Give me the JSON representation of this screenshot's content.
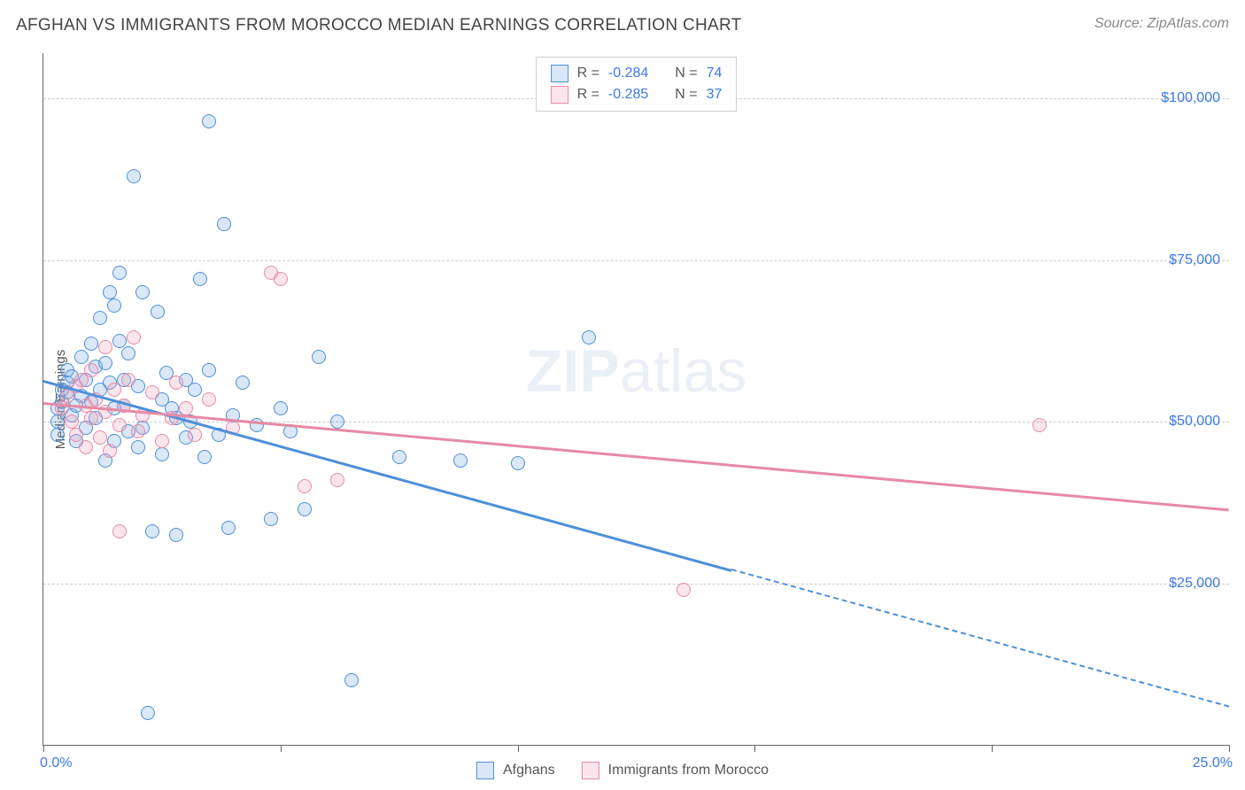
{
  "title": "AFGHAN VS IMMIGRANTS FROM MOROCCO MEDIAN EARNINGS CORRELATION CHART",
  "source": "Source: ZipAtlas.com",
  "y_axis_label": "Median Earnings",
  "watermark_a": "ZIP",
  "watermark_b": "atlas",
  "chart": {
    "type": "scatter",
    "xlim": [
      0,
      25
    ],
    "ylim": [
      0,
      107000
    ],
    "x_tick_positions": [
      0,
      5,
      10,
      15,
      20,
      25
    ],
    "xlim_labels": {
      "min": "0.0%",
      "max": "25.0%"
    },
    "y_gridlines": [
      25000,
      50000,
      75000,
      100000
    ],
    "y_tick_labels": [
      "$25,000",
      "$50,000",
      "$75,000",
      "$100,000"
    ],
    "grid_color": "#cccccc",
    "axis_color": "#666666",
    "tick_label_color": "#3b78e7",
    "background_color": "#ffffff",
    "point_radius": 8,
    "point_stroke_width": 1.5,
    "point_fill_opacity": 0.28,
    "line_width": 2.5
  },
  "series": {
    "afghans": {
      "label": "Afghans",
      "color_stroke": "#4e8fd9",
      "color_fill": "rgba(120,170,225,0.28)",
      "R": "-0.284",
      "N": "74",
      "trend": {
        "x1": 0,
        "y1": 56500,
        "x2": 25,
        "y2": 6000,
        "solid_until_x": 14.5
      },
      "points": [
        [
          0.3,
          48000
        ],
        [
          0.3,
          50000
        ],
        [
          0.3,
          52000
        ],
        [
          0.4,
          55000
        ],
        [
          0.4,
          53000
        ],
        [
          0.5,
          56000
        ],
        [
          0.5,
          54500
        ],
        [
          0.5,
          58000
        ],
        [
          0.6,
          51000
        ],
        [
          0.6,
          57000
        ],
        [
          0.7,
          52500
        ],
        [
          0.7,
          47000
        ],
        [
          0.8,
          54000
        ],
        [
          0.8,
          60000
        ],
        [
          0.9,
          56500
        ],
        [
          0.9,
          49000
        ],
        [
          1.0,
          62000
        ],
        [
          1.0,
          53000
        ],
        [
          1.1,
          58500
        ],
        [
          1.1,
          50500
        ],
        [
          1.2,
          66000
        ],
        [
          1.2,
          55000
        ],
        [
          1.3,
          59000
        ],
        [
          1.3,
          44000
        ],
        [
          1.4,
          70000
        ],
        [
          1.4,
          56000
        ],
        [
          1.5,
          68000
        ],
        [
          1.5,
          52000
        ],
        [
          1.5,
          47000
        ],
        [
          1.6,
          73000
        ],
        [
          1.6,
          62500
        ],
        [
          1.7,
          52500
        ],
        [
          1.7,
          56500
        ],
        [
          1.8,
          60500
        ],
        [
          1.8,
          48500
        ],
        [
          1.9,
          88000
        ],
        [
          2.0,
          55500
        ],
        [
          2.0,
          46000
        ],
        [
          2.1,
          70000
        ],
        [
          2.1,
          49000
        ],
        [
          2.2,
          5000
        ],
        [
          2.3,
          33000
        ],
        [
          2.4,
          67000
        ],
        [
          2.5,
          53500
        ],
        [
          2.5,
          45000
        ],
        [
          2.6,
          57500
        ],
        [
          2.7,
          52000
        ],
        [
          2.8,
          50500
        ],
        [
          2.8,
          32500
        ],
        [
          3.0,
          56500
        ],
        [
          3.0,
          47500
        ],
        [
          3.1,
          50000
        ],
        [
          3.2,
          55000
        ],
        [
          3.3,
          72000
        ],
        [
          3.4,
          44500
        ],
        [
          3.5,
          96500
        ],
        [
          3.5,
          58000
        ],
        [
          3.7,
          48000
        ],
        [
          3.8,
          80500
        ],
        [
          3.9,
          33500
        ],
        [
          4.0,
          51000
        ],
        [
          4.2,
          56000
        ],
        [
          4.5,
          49500
        ],
        [
          4.8,
          35000
        ],
        [
          5.0,
          52000
        ],
        [
          5.2,
          48500
        ],
        [
          5.5,
          36500
        ],
        [
          5.8,
          60000
        ],
        [
          6.2,
          50000
        ],
        [
          6.5,
          10000
        ],
        [
          7.5,
          44500
        ],
        [
          8.8,
          44000
        ],
        [
          10.0,
          43500
        ],
        [
          11.5,
          63000
        ]
      ]
    },
    "morocco": {
      "label": "Immigrants from Morocco",
      "color_stroke": "#e68aa5",
      "color_fill": "rgba(240,160,185,0.28)",
      "R": "-0.285",
      "N": "37",
      "trend": {
        "x1": 0,
        "y1": 53000,
        "x2": 25,
        "y2": 36500,
        "solid_until_x": 25
      },
      "points": [
        [
          0.4,
          52000
        ],
        [
          0.5,
          54000
        ],
        [
          0.6,
          50000
        ],
        [
          0.7,
          55500
        ],
        [
          0.7,
          48000
        ],
        [
          0.8,
          56500
        ],
        [
          0.9,
          52500
        ],
        [
          0.9,
          46000
        ],
        [
          1.0,
          58000
        ],
        [
          1.0,
          50500
        ],
        [
          1.1,
          53500
        ],
        [
          1.2,
          47500
        ],
        [
          1.3,
          61500
        ],
        [
          1.3,
          51500
        ],
        [
          1.4,
          45500
        ],
        [
          1.5,
          55000
        ],
        [
          1.6,
          49500
        ],
        [
          1.6,
          33000
        ],
        [
          1.7,
          52500
        ],
        [
          1.8,
          56500
        ],
        [
          1.9,
          63000
        ],
        [
          2.0,
          48500
        ],
        [
          2.1,
          51000
        ],
        [
          2.3,
          54500
        ],
        [
          2.5,
          47000
        ],
        [
          2.7,
          50500
        ],
        [
          2.8,
          56000
        ],
        [
          3.0,
          52000
        ],
        [
          3.2,
          48000
        ],
        [
          3.5,
          53500
        ],
        [
          4.0,
          49000
        ],
        [
          4.8,
          73000
        ],
        [
          5.0,
          72000
        ],
        [
          5.5,
          40000
        ],
        [
          6.2,
          41000
        ],
        [
          13.5,
          24000
        ],
        [
          21.0,
          49500
        ]
      ]
    }
  },
  "top_legend": {
    "r_label": "R =",
    "n_label": "N ="
  }
}
